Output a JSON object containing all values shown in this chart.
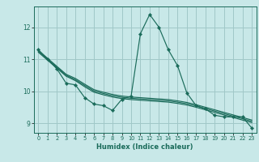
{
  "title": "",
  "xlabel": "Humidex (Indice chaleur)",
  "background_color": "#c8e8e8",
  "grid_color": "#a0c8c8",
  "line_color": "#1a6b5a",
  "marker_color": "#1a6b5a",
  "xlim": [
    -0.5,
    23.5
  ],
  "ylim": [
    8.7,
    12.65
  ],
  "yticks": [
    9,
    10,
    11,
    12
  ],
  "xticks": [
    0,
    1,
    2,
    3,
    4,
    5,
    6,
    7,
    8,
    9,
    10,
    11,
    12,
    13,
    14,
    15,
    16,
    17,
    18,
    19,
    20,
    21,
    22,
    23
  ],
  "main_series": [
    11.3,
    11.0,
    10.7,
    10.25,
    10.2,
    9.8,
    9.6,
    9.55,
    9.4,
    9.75,
    9.85,
    11.8,
    12.4,
    12.0,
    11.3,
    10.8,
    9.95,
    9.55,
    9.45,
    9.25,
    9.2,
    9.2,
    9.2,
    8.85
  ],
  "trend_lines": [
    [
      11.28,
      11.03,
      10.78,
      10.53,
      10.4,
      10.22,
      10.05,
      9.97,
      9.9,
      9.85,
      9.82,
      9.8,
      9.78,
      9.76,
      9.74,
      9.7,
      9.65,
      9.58,
      9.5,
      9.42,
      9.34,
      9.26,
      9.18,
      9.1
    ],
    [
      11.25,
      11.0,
      10.75,
      10.5,
      10.36,
      10.18,
      10.01,
      9.93,
      9.86,
      9.81,
      9.78,
      9.76,
      9.74,
      9.72,
      9.7,
      9.66,
      9.61,
      9.54,
      9.46,
      9.38,
      9.3,
      9.22,
      9.14,
      9.06
    ],
    [
      11.22,
      10.97,
      10.72,
      10.47,
      10.33,
      10.14,
      9.97,
      9.89,
      9.82,
      9.77,
      9.74,
      9.72,
      9.7,
      9.68,
      9.66,
      9.62,
      9.57,
      9.5,
      9.42,
      9.34,
      9.26,
      9.18,
      9.1,
      9.02
    ]
  ]
}
